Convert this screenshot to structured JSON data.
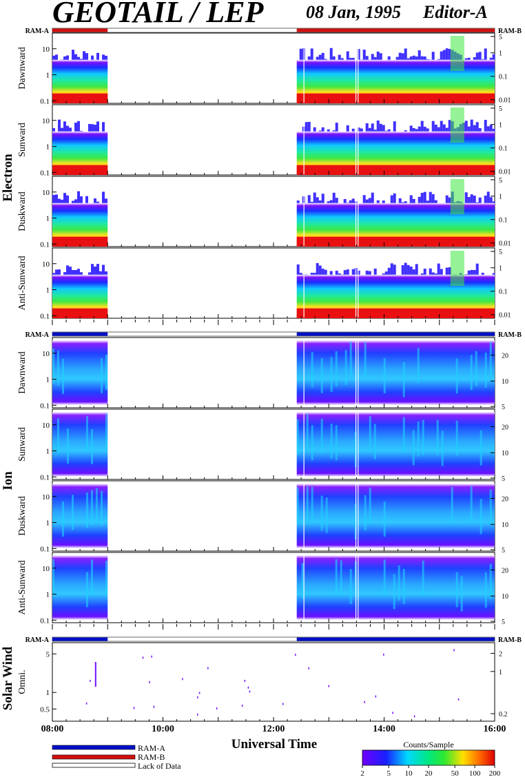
{
  "header": {
    "title": "GEOTAIL / LEP",
    "date": "08 Jan, 1995",
    "editor": "Editor-A"
  },
  "ram_labels": {
    "left": "RAM-A",
    "right": "RAM-B"
  },
  "groups": [
    {
      "name": "Electron",
      "panels": [
        "Dawnward",
        "Sunward",
        "Duskward",
        "Anti-Sunward"
      ]
    },
    {
      "name": "Ion",
      "panels": [
        "Dawnward",
        "Sunward",
        "Duskward",
        "Anti-Sunward"
      ]
    },
    {
      "name": "Solar Wind",
      "panels": [
        "Omni."
      ]
    }
  ],
  "axes": {
    "electron_left_ticks": [
      "10",
      "1",
      "0.1"
    ],
    "electron_right_ticks": [
      "5",
      "1",
      "0.1",
      "0.01"
    ],
    "ion_left_ticks": [
      "10",
      "1",
      "0.1"
    ],
    "ion_right_ticks": [
      "20",
      "10",
      "5"
    ],
    "sw_left_ticks": [
      "5",
      "1",
      "0.5"
    ],
    "sw_right_ticks": [
      "2",
      "1",
      "0.2"
    ]
  },
  "time_axis": {
    "label": "Universal Time",
    "ticks": [
      "08:00",
      "10:00",
      "12:00",
      "14:00",
      "16:00"
    ]
  },
  "legend": {
    "ram_a": "RAM-A",
    "ram_b": "RAM-B",
    "lack": "Lack of Data",
    "colors": {
      "ram_a": "#0010c8",
      "ram_b": "#d01010"
    }
  },
  "colorbar": {
    "title": "Counts/Sample",
    "ticks": [
      "2",
      "5",
      "10",
      "20",
      "50",
      "100",
      "200"
    ]
  },
  "chart_data": {
    "type": "heatmap",
    "title": "GEOTAIL / LEP",
    "xlabel": "Universal Time",
    "xlim": [
      "08:00",
      "16:00"
    ],
    "data_gaps": [
      [
        "09:00",
        "12:25"
      ],
      [
        "12:30",
        "12:31"
      ],
      [
        "13:30",
        "13:32"
      ]
    ],
    "electron": {
      "ylim": [
        0.08,
        40
      ],
      "scale": "log",
      "ram": "RAM-B",
      "range_count_per_sample": [
        2,
        200
      ]
    },
    "ion": {
      "ylim": [
        0.08,
        40
      ],
      "scale": "log",
      "ram": "RAM-A"
    },
    "solar_wind": {
      "ylim": [
        0.3,
        8
      ],
      "scale": "log"
    },
    "colorbar_scale": "log",
    "colorbar_range": [
      2,
      200
    ]
  }
}
